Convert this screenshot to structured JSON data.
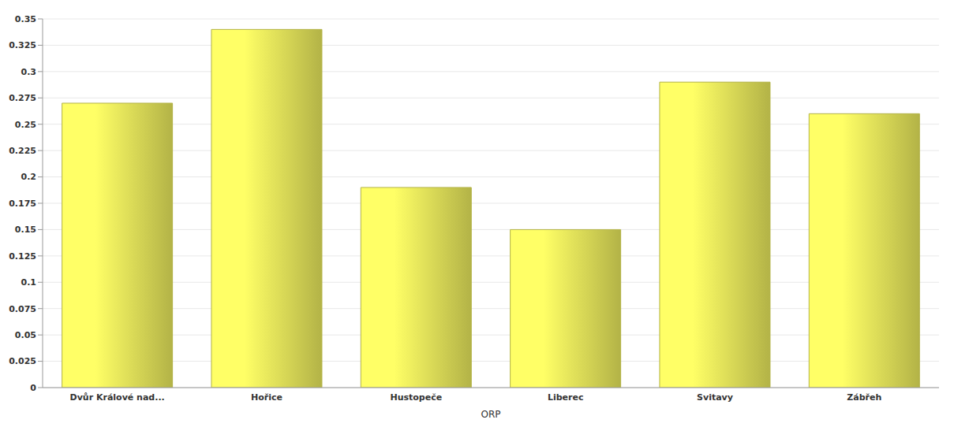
{
  "chart_data": {
    "type": "bar",
    "x_label": "ORP",
    "categories": [
      "Dvůr Králové nad...",
      "Hořice",
      "Hustopeče",
      "Liberec",
      "Svitavy",
      "Zábřeh"
    ],
    "values": [
      0.27,
      0.34,
      0.19,
      0.15,
      0.29,
      0.26
    ],
    "color": "#ffff66",
    "ylim": [
      0,
      0.35
    ],
    "yticks": [
      0,
      0.025,
      0.05,
      0.075,
      0.1,
      0.125,
      0.15,
      0.175,
      0.2,
      0.225,
      0.25,
      0.275,
      0.3,
      0.325,
      0.35
    ],
    "grid": true
  }
}
